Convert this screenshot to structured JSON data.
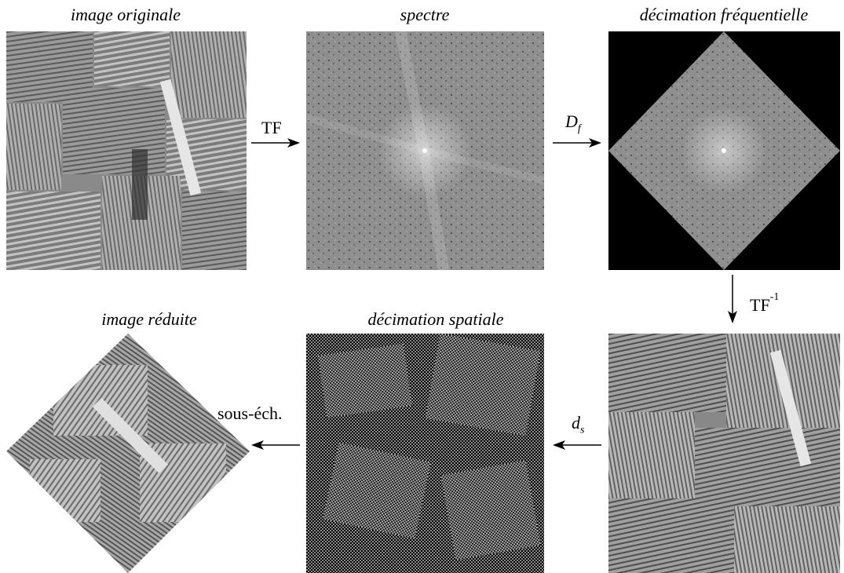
{
  "panels": {
    "original": {
      "caption": "image originale"
    },
    "spectrum": {
      "caption": "spectre"
    },
    "freq_decimation": {
      "caption": "décimation fréquentielle"
    },
    "spatial_decimation": {
      "caption": "décimation spatiale"
    },
    "reduced": {
      "caption": "image réduite"
    }
  },
  "operations": {
    "tf": {
      "label": "TF"
    },
    "df": {
      "symbol": "D",
      "subscript": "f"
    },
    "tf_inverse": {
      "label": "TF",
      "superscript": "-1"
    },
    "ds": {
      "symbol": "d",
      "subscript": "s"
    },
    "subsample": {
      "label": "sous-éch."
    }
  }
}
